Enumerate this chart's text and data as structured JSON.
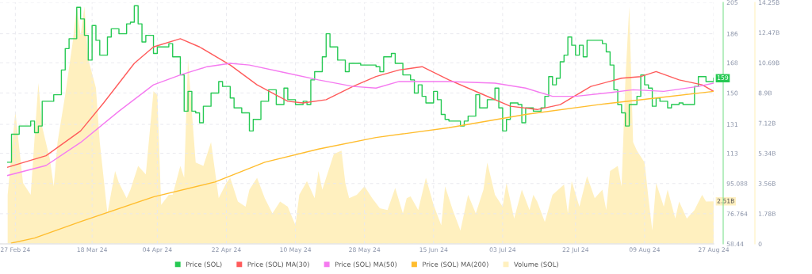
{
  "chart_data": {
    "type": "line",
    "grid": true,
    "legend": "bottom",
    "xlim": [
      "2024-02-23",
      "2024-08-27"
    ],
    "xticks": [
      {
        "value": "2024-02-27",
        "label": "27 Feb 24"
      },
      {
        "value": "2024-03-18",
        "label": "18 Mar 24"
      },
      {
        "value": "2024-04-04",
        "label": "04 Apr 24"
      },
      {
        "value": "2024-04-22",
        "label": "22 Apr 24"
      },
      {
        "value": "2024-05-10",
        "label": "10 May 24"
      },
      {
        "value": "2024-05-28",
        "label": "28 May 24"
      },
      {
        "value": "2024-06-15",
        "label": "15 Jun 24"
      },
      {
        "value": "2024-07-03",
        "label": "03 Jul 24"
      },
      {
        "value": "2024-07-22",
        "label": "22 Jul 24"
      },
      {
        "value": "2024-08-09",
        "label": "09 Aug 24"
      },
      {
        "value": "2024-08-27",
        "label": "27 Aug 24"
      }
    ],
    "ylim": [
      58.44,
      205.032
    ],
    "yticks": [
      58.44,
      76.764,
      95.088,
      {
        "value": 113.412,
        "label": "113"
      },
      {
        "value": 131,
        "label": "131"
      },
      {
        "value": 150.06,
        "label": "150"
      },
      {
        "value": 168.384,
        "label": "168"
      },
      {
        "value": 186,
        "label": "186"
      },
      {
        "value": 205.032,
        "label": "205"
      }
    ],
    "y2lim": [
      0,
      14.25
    ],
    "y2ticks": [
      0,
      {
        "value": 1.78125,
        "label": "1.78B"
      },
      {
        "value": 3.5625,
        "label": "3.56B"
      },
      {
        "value": 5.34375,
        "label": "5.34B"
      },
      {
        "value": 7.125,
        "label": "7.12B"
      },
      {
        "value": 8.90625,
        "label": "8.9B"
      },
      {
        "value": 10.6875,
        "label": "10.69B"
      },
      {
        "value": 12.46875,
        "label": "12.47B"
      },
      {
        "value": 14.25,
        "label": "14.25B"
      }
    ],
    "series": [
      {
        "name": "Price (SOL)",
        "type": "step",
        "color": "#26c953",
        "x": [
          "2024-02-25",
          "2024-02-26",
          "2024-02-28",
          "2024-03-02",
          "2024-03-03",
          "2024-03-04",
          "2024-03-05",
          "2024-03-08",
          "2024-03-10",
          "2024-03-11",
          "2024-03-12",
          "2024-03-14",
          "2024-03-15",
          "2024-03-16",
          "2024-03-17",
          "2024-03-18",
          "2024-03-19",
          "2024-03-20",
          "2024-03-22",
          "2024-03-23",
          "2024-03-25",
          "2024-03-27",
          "2024-03-28",
          "2024-03-29",
          "2024-03-30",
          "2024-03-31",
          "2024-04-01",
          "2024-04-03",
          "2024-04-04",
          "2024-04-07",
          "2024-04-08",
          "2024-04-10",
          "2024-04-11",
          "2024-04-12",
          "2024-04-13",
          "2024-04-14",
          "2024-04-15",
          "2024-04-16",
          "2024-04-18",
          "2024-04-20",
          "2024-04-21",
          "2024-04-23",
          "2024-04-24",
          "2024-04-26",
          "2024-04-28",
          "2024-04-29",
          "2024-05-01",
          "2024-05-03",
          "2024-05-05",
          "2024-05-07",
          "2024-05-08",
          "2024-05-10",
          "2024-05-12",
          "2024-05-13",
          "2024-05-14",
          "2024-05-15",
          "2024-05-17",
          "2024-05-18",
          "2024-05-19",
          "2024-05-21",
          "2024-05-23",
          "2024-05-24",
          "2024-05-27",
          "2024-05-31",
          "2024-06-01",
          "2024-06-02",
          "2024-06-04",
          "2024-06-05",
          "2024-06-07",
          "2024-06-09",
          "2024-06-10",
          "2024-06-11",
          "2024-06-12",
          "2024-06-13",
          "2024-06-15",
          "2024-06-16",
          "2024-06-17",
          "2024-06-18",
          "2024-06-19",
          "2024-06-22",
          "2024-06-23",
          "2024-06-24",
          "2024-06-26",
          "2024-06-27",
          "2024-06-29",
          "2024-07-01",
          "2024-07-02",
          "2024-07-03",
          "2024-07-04",
          "2024-07-05",
          "2024-07-07",
          "2024-07-08",
          "2024-07-09",
          "2024-07-11",
          "2024-07-13",
          "2024-07-14",
          "2024-07-15",
          "2024-07-16",
          "2024-07-17",
          "2024-07-18",
          "2024-07-19",
          "2024-07-20",
          "2024-07-21",
          "2024-07-22",
          "2024-07-23",
          "2024-07-24",
          "2024-07-25",
          "2024-07-27",
          "2024-07-29",
          "2024-07-30",
          "2024-07-31",
          "2024-08-01",
          "2024-08-02",
          "2024-08-03",
          "2024-08-04",
          "2024-08-05",
          "2024-08-07",
          "2024-08-08",
          "2024-08-09",
          "2024-08-10",
          "2024-08-11",
          "2024-08-12",
          "2024-08-13",
          "2024-08-15",
          "2024-08-16",
          "2024-08-18",
          "2024-08-19",
          "2024-08-22",
          "2024-08-23",
          "2024-08-25",
          "2024-08-27"
        ],
        "values": [
          108,
          125,
          130,
          133,
          126,
          130,
          145,
          149,
          164,
          177,
          183,
          202,
          195,
          185,
          170,
          191,
          182,
          173,
          184,
          189,
          186,
          192,
          193,
          203,
          192,
          181,
          185,
          174,
          178,
          180,
          172,
          161,
          139,
          151,
          139,
          138,
          132,
          142,
          150,
          157,
          154,
          147,
          141,
          138,
          127,
          134,
          145,
          152,
          143,
          153,
          146,
          143,
          145,
          143,
          158,
          163,
          172,
          186,
          178,
          170,
          163,
          168,
          167,
          166,
          163,
          172,
          174,
          168,
          161,
          158,
          150,
          155,
          148,
          144,
          151,
          146,
          137,
          134,
          133,
          130,
          133,
          136,
          149,
          141,
          146,
          153,
          141,
          127,
          134,
          144,
          143,
          132,
          141,
          139,
          141,
          148,
          160,
          155,
          159,
          169,
          173,
          184,
          179,
          173,
          179,
          172,
          182,
          182,
          180,
          175,
          167,
          152,
          143,
          138,
          130,
          143,
          148,
          161,
          155,
          153,
          142,
          147,
          145,
          141,
          143,
          144,
          143,
          154,
          160,
          157,
          159
        ],
        "value_labels": [
          null,
          null,
          null,
          null,
          null,
          null,
          null,
          null,
          null,
          null,
          null,
          null,
          null,
          null,
          null,
          null,
          null,
          null,
          null,
          null,
          null,
          null,
          null,
          null,
          null,
          null,
          null,
          null,
          null,
          null,
          null,
          null,
          null,
          null,
          null,
          null,
          null,
          null,
          null,
          null,
          null,
          null,
          null,
          null,
          null,
          null,
          null,
          null,
          null,
          null,
          null,
          null,
          null,
          null,
          null,
          null,
          null,
          null,
          null,
          null,
          null,
          null,
          null,
          null,
          null,
          null,
          null,
          null,
          null,
          null,
          null,
          null,
          null,
          null,
          null,
          null,
          null,
          null,
          null,
          null,
          null,
          null,
          null,
          null,
          null,
          null,
          null,
          null,
          null,
          null,
          null,
          null,
          null,
          null,
          null,
          null,
          null,
          null,
          null,
          null,
          null,
          null,
          null,
          null,
          null,
          null,
          null,
          null,
          null,
          null,
          null,
          null,
          null,
          null,
          null,
          null,
          null,
          null,
          null,
          null,
          null,
          null,
          null,
          null,
          null,
          null,
          null,
          null,
          null,
          null,
          "159"
        ]
      },
      {
        "name": "Price (SOL) MA(30)",
        "type": "line",
        "color": "#ff5b5b",
        "x": [
          "2024-02-25",
          "2024-03-06",
          "2024-03-15",
          "2024-03-21",
          "2024-03-29",
          "2024-04-03",
          "2024-04-10",
          "2024-04-15",
          "2024-04-23",
          "2024-04-30",
          "2024-05-08",
          "2024-05-12",
          "2024-05-18",
          "2024-05-25",
          "2024-05-31",
          "2024-06-06",
          "2024-06-12",
          "2024-06-19",
          "2024-06-27",
          "2024-07-05",
          "2024-07-12",
          "2024-07-18",
          "2024-07-26",
          "2024-08-03",
          "2024-08-08",
          "2024-08-12",
          "2024-08-18",
          "2024-08-24",
          "2024-08-27"
        ],
        "values": [
          105,
          112,
          127,
          144,
          168,
          178,
          183,
          178,
          167,
          155,
          145,
          144,
          146,
          154,
          160,
          164,
          166,
          158,
          150,
          142,
          140,
          143,
          154,
          159,
          160,
          163,
          158,
          155,
          151
        ]
      },
      {
        "name": "Price (SOL) MA(50)",
        "type": "line",
        "color": "#f57af0",
        "x": [
          "2024-02-25",
          "2024-03-06",
          "2024-03-15",
          "2024-03-25",
          "2024-04-03",
          "2024-04-10",
          "2024-04-17",
          "2024-04-23",
          "2024-04-28",
          "2024-05-08",
          "2024-05-16",
          "2024-05-25",
          "2024-05-31",
          "2024-06-06",
          "2024-06-12",
          "2024-06-19",
          "2024-07-01",
          "2024-07-09",
          "2024-07-16",
          "2024-07-22",
          "2024-07-30",
          "2024-08-06",
          "2024-08-14",
          "2024-08-23",
          "2024-08-27"
        ],
        "values": [
          100,
          106,
          120,
          139,
          155,
          161,
          166,
          168,
          167,
          162,
          158,
          154,
          153,
          157,
          157,
          157,
          156,
          153,
          148,
          148,
          150,
          152,
          151,
          154,
          156
        ]
      },
      {
        "name": "Price (SOL) MA(200)",
        "type": "line",
        "color": "#ffbd2e",
        "x": [
          "2024-02-26",
          "2024-03-03",
          "2024-03-15",
          "2024-04-03",
          "2024-04-19",
          "2024-05-02",
          "2024-05-16",
          "2024-05-31",
          "2024-06-19",
          "2024-07-09",
          "2024-07-28",
          "2024-08-12",
          "2024-08-27"
        ],
        "values": [
          59,
          62,
          72,
          87,
          96,
          108,
          116,
          123,
          129,
          137,
          143,
          147,
          151
        ]
      },
      {
        "name": "Volume (SOL)",
        "type": "area",
        "axis": "y2",
        "color": "#fff0bf",
        "x": [
          "2024-02-25",
          "2024-02-27",
          "2024-02-29",
          "2024-03-02",
          "2024-03-04",
          "2024-03-05",
          "2024-03-07",
          "2024-03-08",
          "2024-03-09",
          "2024-03-11",
          "2024-03-13",
          "2024-03-14",
          "2024-03-15",
          "2024-03-16",
          "2024-03-17",
          "2024-03-19",
          "2024-03-20",
          "2024-03-22",
          "2024-03-24",
          "2024-03-25",
          "2024-03-27",
          "2024-03-28",
          "2024-03-30",
          "2024-04-01",
          "2024-04-03",
          "2024-04-04",
          "2024-04-05",
          "2024-04-07",
          "2024-04-08",
          "2024-04-10",
          "2024-04-11",
          "2024-04-12",
          "2024-04-13",
          "2024-04-14",
          "2024-04-16",
          "2024-04-18",
          "2024-04-20",
          "2024-04-22",
          "2024-04-23",
          "2024-04-25",
          "2024-04-27",
          "2024-04-28",
          "2024-04-30",
          "2024-05-02",
          "2024-05-04",
          "2024-05-06",
          "2024-05-08",
          "2024-05-10",
          "2024-05-11",
          "2024-05-13",
          "2024-05-15",
          "2024-05-16",
          "2024-05-17",
          "2024-05-20",
          "2024-05-22",
          "2024-05-23",
          "2024-05-24",
          "2024-05-26",
          "2024-05-28",
          "2024-05-30",
          "2024-06-01",
          "2024-06-03",
          "2024-06-05",
          "2024-06-07",
          "2024-06-08",
          "2024-06-09",
          "2024-06-11",
          "2024-06-13",
          "2024-06-15",
          "2024-06-17",
          "2024-06-18",
          "2024-06-20",
          "2024-06-22",
          "2024-06-24",
          "2024-06-26",
          "2024-06-28",
          "2024-06-29",
          "2024-07-01",
          "2024-07-03",
          "2024-07-04",
          "2024-07-06",
          "2024-07-08",
          "2024-07-10",
          "2024-07-11",
          "2024-07-12",
          "2024-07-14",
          "2024-07-16",
          "2024-07-19",
          "2024-07-20",
          "2024-07-21",
          "2024-07-23",
          "2024-07-25",
          "2024-07-27",
          "2024-07-29",
          "2024-07-30",
          "2024-07-31",
          "2024-08-02",
          "2024-08-03",
          "2024-08-04",
          "2024-08-05",
          "2024-08-06",
          "2024-08-07",
          "2024-08-09",
          "2024-08-10",
          "2024-08-11",
          "2024-08-12",
          "2024-08-14",
          "2024-08-15",
          "2024-08-17",
          "2024-08-18",
          "2024-08-20",
          "2024-08-22",
          "2024-08-24",
          "2024-08-25",
          "2024-08-27"
        ],
        "values": [
          2.9,
          7.8,
          3.6,
          2.9,
          9.5,
          6.9,
          5.0,
          3.4,
          6.0,
          8.8,
          12.0,
          14.0,
          12.3,
          14.0,
          10.9,
          9.2,
          6.0,
          1.8,
          4.3,
          3.6,
          2.7,
          3.2,
          4.6,
          4.1,
          9.0,
          8.8,
          2.3,
          2.9,
          2.9,
          4.6,
          3.9,
          10.9,
          7.8,
          4.8,
          4.6,
          6.0,
          2.7,
          3.6,
          3.9,
          2.5,
          2.2,
          3.2,
          3.9,
          2.7,
          1.8,
          2.5,
          2.2,
          1.1,
          2.9,
          3.7,
          2.7,
          4.3,
          3.2,
          5.3,
          5.5,
          3.6,
          2.7,
          2.9,
          3.4,
          2.7,
          2.1,
          2.0,
          3.3,
          1.8,
          2.7,
          2.8,
          2.0,
          3.9,
          2.3,
          1.1,
          3.4,
          2.0,
          0.8,
          2.9,
          1.8,
          3.2,
          4.8,
          2.9,
          2.2,
          3.6,
          1.5,
          3.2,
          2.0,
          2.9,
          2.5,
          1.3,
          2.9,
          3.5,
          1.8,
          3.7,
          2.2,
          4.0,
          2.7,
          3.2,
          2.0,
          4.3,
          4.6,
          3.4,
          9.7,
          14.0,
          6.0,
          5.5,
          4.8,
          2.7,
          0.8,
          3.6,
          2.2,
          3.2,
          1.5,
          2.5,
          1.5,
          2.0,
          2.9,
          2.5,
          2.51
        ],
        "value_labels": [
          null,
          null,
          null,
          null,
          null,
          null,
          null,
          null,
          null,
          null,
          null,
          null,
          null,
          null,
          null,
          null,
          null,
          null,
          null,
          null,
          null,
          null,
          null,
          null,
          null,
          null,
          null,
          null,
          null,
          null,
          null,
          null,
          null,
          null,
          null,
          null,
          null,
          null,
          null,
          null,
          null,
          null,
          null,
          null,
          null,
          null,
          null,
          null,
          null,
          null,
          null,
          null,
          null,
          null,
          null,
          null,
          null,
          null,
          null,
          null,
          null,
          null,
          null,
          null,
          null,
          null,
          null,
          null,
          null,
          null,
          null,
          null,
          null,
          null,
          null,
          null,
          null,
          null,
          null,
          null,
          null,
          null,
          null,
          null,
          null,
          null,
          null,
          null,
          null,
          null,
          null,
          null,
          null,
          null,
          null,
          null,
          null,
          null,
          null,
          null,
          null,
          null,
          null,
          null,
          null,
          null,
          null,
          null,
          null,
          null,
          null,
          null,
          null,
          null,
          "2.51B"
        ]
      }
    ]
  }
}
